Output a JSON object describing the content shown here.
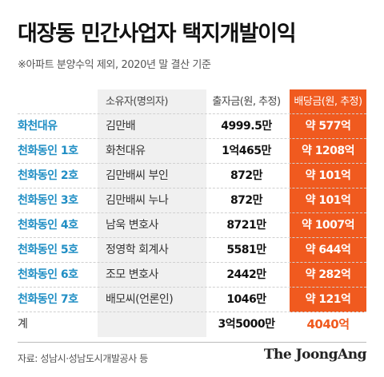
{
  "title": "대장동 민간사업자 택지개발이익",
  "subtitle": "※아파트 분양수익 제외, 2020년 말 결산 기준",
  "table": {
    "headers": {
      "name": "",
      "owner": "소유자(명의자)",
      "amount": "출자금(원, 추정)",
      "dividend": "배당금(원, 추정)"
    },
    "rows": [
      {
        "name": "화천대유",
        "owner": "김만배",
        "amount": "4999.5만",
        "dividend": "약 577억"
      },
      {
        "name": "천화동인 1호",
        "owner": "화천대유",
        "amount": "1억465만",
        "dividend": "약 1208억"
      },
      {
        "name": "천화동인 2호",
        "owner": "김만배씨 부인",
        "amount": "872만",
        "dividend": "약 101억"
      },
      {
        "name": "천화동인 3호",
        "owner": "김만배씨 누나",
        "amount": "872만",
        "dividend": "약 101억"
      },
      {
        "name": "천화동인 4호",
        "owner": "남욱 변호사",
        "amount": "8721만",
        "dividend": "약 1007억"
      },
      {
        "name": "천화동인 5호",
        "owner": "정영학 회계사",
        "amount": "5581만",
        "dividend": "약 644억"
      },
      {
        "name": "천화동인 6호",
        "owner": "조모 변호사",
        "amount": "2442만",
        "dividend": "약 282억"
      },
      {
        "name": "천화동인 7호",
        "owner": "배모씨(언론인)",
        "amount": "1046만",
        "dividend": "약 121억"
      }
    ],
    "total": {
      "name": "계",
      "owner": "",
      "amount": "3억5000만",
      "dividend": "4040억"
    }
  },
  "source": "자료: 성남시·성남도시개발공사 등",
  "brand": "The JoongAng",
  "colors": {
    "accent": "#f05a1f",
    "name_blue": "#1f8ec4",
    "owner_bg": "#f0f0f0"
  }
}
